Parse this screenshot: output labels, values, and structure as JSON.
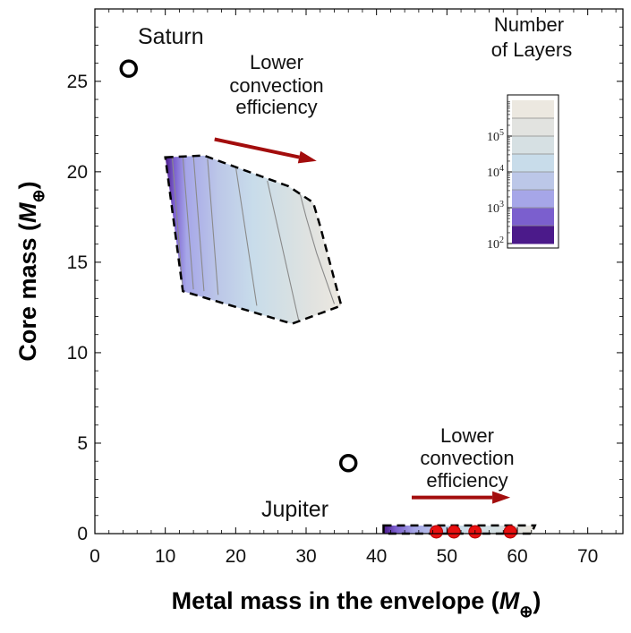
{
  "chart_data": {
    "type": "contour",
    "xlabel": "Metal mass in the envelope (",
    "xlabel_symbol": "M",
    "xlabel_sub": "⊕",
    "xlabel_close": ")",
    "ylabel": "Core mass (",
    "ylabel_symbol": "M",
    "ylabel_sub": "⊕",
    "ylabel_close": ")",
    "xlim": [
      0,
      75
    ],
    "ylim": [
      0,
      29
    ],
    "xticks": [
      0,
      10,
      20,
      30,
      40,
      50,
      60,
      70
    ],
    "yticks": [
      0,
      5,
      10,
      15,
      20,
      25
    ],
    "grid": false,
    "colorbar": {
      "title_line1": "Number",
      "title_line2": "of Layers",
      "placement": "top-right",
      "ticks": [
        {
          "base": "10",
          "exp": "2",
          "value": 100
        },
        {
          "base": "10",
          "exp": "3",
          "value": 1000
        },
        {
          "base": "10",
          "exp": "4",
          "value": 10000
        },
        {
          "base": "10",
          "exp": "5",
          "value": 100000
        }
      ],
      "log_range": [
        2,
        6
      ],
      "band_colors": [
        "#4b1a8a",
        "#7b5fce",
        "#a6a6e8",
        "#bcc7e8",
        "#c8dcea",
        "#d6e0e3",
        "#e2e3e0",
        "#ece8e0"
      ]
    },
    "planets": [
      {
        "name": "Saturn",
        "x": 4.8,
        "y": 25.7
      },
      {
        "name": "Jupiter",
        "x": 36.0,
        "y": 3.9
      }
    ],
    "regions": [
      {
        "name": "upper-region",
        "boundary": [
          [
            10,
            20.8
          ],
          [
            15.5,
            20.9
          ],
          [
            27.5,
            19.2
          ],
          [
            31,
            18.3
          ],
          [
            32,
            17
          ],
          [
            35,
            12.6
          ],
          [
            28,
            11.6
          ],
          [
            12.5,
            13.4
          ],
          [
            10,
            20.8
          ]
        ],
        "contour_lines": [
          [
            [
              11.0,
              20.8
            ],
            [
              12.5,
              13.4
            ]
          ],
          [
            [
              12.5,
              20.85
            ],
            [
              14.0,
              13.5
            ]
          ],
          [
            [
              14.0,
              20.9
            ],
            [
              15.5,
              13.4
            ]
          ],
          [
            [
              16.0,
              20.7
            ],
            [
              17.5,
              13.2
            ]
          ],
          [
            [
              20.0,
              20.3
            ],
            [
              23.0,
              12.6
            ]
          ],
          [
            [
              24.5,
              19.5
            ],
            [
              29.0,
              11.7
            ]
          ],
          [
            [
              29.0,
              19.0
            ],
            [
              30.0,
              17.5
            ],
            [
              31.5,
              15.5
            ],
            [
              34.0,
              12.7
            ]
          ]
        ]
      },
      {
        "name": "lower-region",
        "boundary": [
          [
            41,
            0.45
          ],
          [
            62.5,
            0.45
          ],
          [
            62,
            0
          ],
          [
            41,
            0
          ],
          [
            41,
            0.45
          ]
        ]
      }
    ],
    "red_points": [
      {
        "x": 48.5,
        "y": 0.1
      },
      {
        "x": 51,
        "y": 0.1
      },
      {
        "x": 54,
        "y": 0.1
      },
      {
        "x": 59,
        "y": 0.1
      }
    ],
    "annotations": [
      {
        "line1": "Lower",
        "line2": "convection",
        "line3": "efficiency",
        "arrow_from": [
          17,
          21.8
        ],
        "arrow_to": [
          31.5,
          20.6
        ]
      },
      {
        "line1": "Lower",
        "line2": "convection",
        "line3": "efficiency",
        "arrow_from": [
          45,
          2.0
        ],
        "arrow_to": [
          59,
          2.0
        ]
      }
    ],
    "arrow_color": "#a30d0d"
  }
}
